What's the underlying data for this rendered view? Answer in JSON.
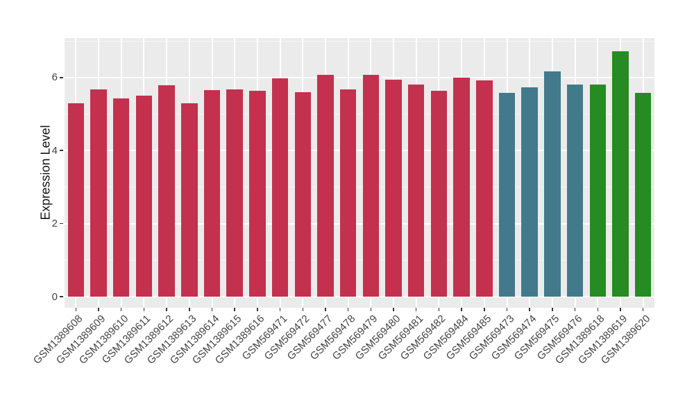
{
  "chart": {
    "background": "#FFFFFF",
    "panel_bg": "#EBEBEB",
    "grid_color": "#FFFFFF",
    "tick_color": "#333333",
    "axis_text_color": "#424242",
    "axis_title_color": "#111111"
  },
  "chart_data": {
    "type": "bar",
    "title": "",
    "xlabel": "",
    "ylabel": "Expression Level",
    "ylim": [
      0,
      7.08
    ],
    "yticks": [
      0,
      2,
      4,
      6
    ],
    "yticks_minor": [
      1,
      3,
      5,
      7
    ],
    "grid": true,
    "legend_position": "none",
    "categories": [
      "GSM1389608",
      "GSM1389609",
      "GSM1389610",
      "GSM1389611",
      "GSM1389612",
      "GSM1389613",
      "GSM1389614",
      "GSM1389615",
      "GSM1389616",
      "GSM569471",
      "GSM569472",
      "GSM569477",
      "GSM569478",
      "GSM569479",
      "GSM569480",
      "GSM569481",
      "GSM569482",
      "GSM569484",
      "GSM569485",
      "GSM569473",
      "GSM569474",
      "GSM569475",
      "GSM569476",
      "GSM1389618",
      "GSM1389619",
      "GSM1389620"
    ],
    "values": [
      5.29,
      5.67,
      5.42,
      5.51,
      5.78,
      5.3,
      5.65,
      5.67,
      5.63,
      5.98,
      5.6,
      6.08,
      5.67,
      6.08,
      5.94,
      5.8,
      5.64,
      6.0,
      5.92,
      5.58,
      5.73,
      6.16,
      5.81,
      5.81,
      6.72,
      5.58
    ],
    "bar_groups": [
      {
        "color": "#C3314E",
        "from": 0,
        "to": 18
      },
      {
        "color": "#427A8B",
        "from": 19,
        "to": 22
      },
      {
        "color": "#268B22",
        "from": 23,
        "to": 25
      }
    ]
  }
}
